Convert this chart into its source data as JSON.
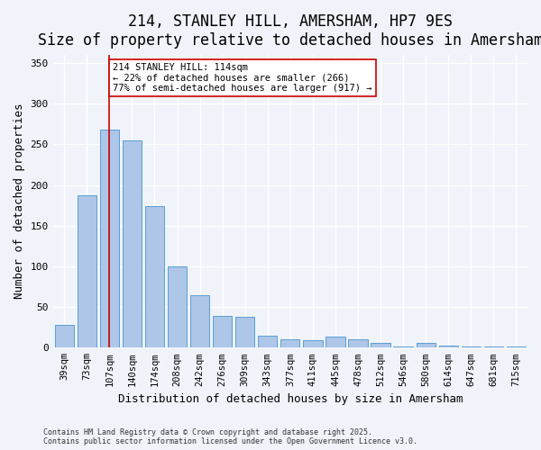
{
  "title": "214, STANLEY HILL, AMERSHAM, HP7 9ES",
  "subtitle": "Size of property relative to detached houses in Amersham",
  "xlabel": "Distribution of detached houses by size in Amersham",
  "ylabel": "Number of detached properties",
  "categories": [
    "39sqm",
    "73sqm",
    "107sqm",
    "140sqm",
    "174sqm",
    "208sqm",
    "242sqm",
    "276sqm",
    "309sqm",
    "343sqm",
    "377sqm",
    "411sqm",
    "445sqm",
    "478sqm",
    "512sqm",
    "546sqm",
    "580sqm",
    "614sqm",
    "647sqm",
    "681sqm",
    "715sqm"
  ],
  "values": [
    28,
    187,
    268,
    255,
    174,
    100,
    65,
    39,
    38,
    15,
    10,
    9,
    14,
    10,
    6,
    1,
    6,
    3,
    1,
    1,
    1
  ],
  "bar_color": "#aec6e8",
  "bar_edge_color": "#5a9fd4",
  "vline_x": 2,
  "vline_color": "#cc0000",
  "annotation_text": "214 STANLEY HILL: 114sqm\n← 22% of detached houses are smaller (266)\n77% of semi-detached houses are larger (917) →",
  "annotation_box_color": "#ffffff",
  "annotation_box_edge": "#cc0000",
  "ylim": [
    0,
    360
  ],
  "yticks": [
    0,
    50,
    100,
    150,
    200,
    250,
    300,
    350
  ],
  "footer_line1": "Contains HM Land Registry data © Crown copyright and database right 2025.",
  "footer_line2": "Contains public sector information licensed under the Open Government Licence v3.0.",
  "bg_color": "#f0f4fa",
  "grid_color": "#ffffff",
  "title_fontsize": 12,
  "subtitle_fontsize": 10,
  "axis_fontsize": 9,
  "tick_fontsize": 7.5
}
